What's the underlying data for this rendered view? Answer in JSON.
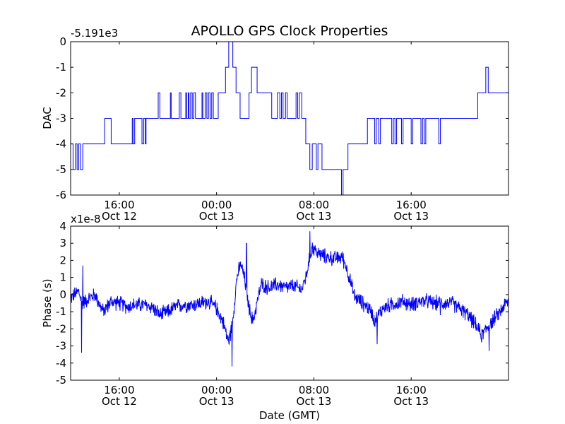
{
  "chart_data": [
    {
      "type": "line",
      "title": "APOLLO GPS Clock Properties",
      "xlabel": "",
      "ylabel": "DAC",
      "offset_label": "-5.191e3",
      "x_unit": "hours since 2008-10-12 10:00 GMT",
      "xlim": [
        0,
        54
      ],
      "ylim": [
        -6,
        0
      ],
      "y_ticks": [
        {
          "value": 0,
          "label": "0"
        },
        {
          "value": -1,
          "label": "-1"
        },
        {
          "value": -2,
          "label": "-2"
        },
        {
          "value": -3,
          "label": "-3"
        },
        {
          "value": -4,
          "label": "-4"
        },
        {
          "value": -5,
          "label": "-5"
        },
        {
          "value": -6,
          "label": "-6"
        }
      ],
      "x_ticks": [
        {
          "value": 6,
          "time": "16:00",
          "date": "Oct 12"
        },
        {
          "value": 18,
          "time": "00:00",
          "date": "Oct 13"
        },
        {
          "value": 30,
          "time": "08:00",
          "date": "Oct 13"
        },
        {
          "value": 42,
          "time": "16:00",
          "date": "Oct 13"
        }
      ],
      "color": "#0000ff",
      "series": [
        {
          "name": "DAC",
          "points": [
            [
              0.0,
              -4
            ],
            [
              0.3,
              -4
            ],
            [
              0.3,
              -5
            ],
            [
              0.6,
              -5
            ],
            [
              0.6,
              -4
            ],
            [
              0.8,
              -4
            ],
            [
              0.8,
              -5
            ],
            [
              1.0,
              -5
            ],
            [
              1.0,
              -4
            ],
            [
              1.2,
              -4
            ],
            [
              1.2,
              -5
            ],
            [
              1.5,
              -5
            ],
            [
              1.5,
              -4
            ],
            [
              4.2,
              -4
            ],
            [
              4.2,
              -3
            ],
            [
              5.0,
              -3
            ],
            [
              5.0,
              -4
            ],
            [
              7.6,
              -4
            ],
            [
              7.6,
              -3
            ],
            [
              7.7,
              -3
            ],
            [
              7.7,
              -4
            ],
            [
              7.9,
              -4
            ],
            [
              7.9,
              -3
            ],
            [
              8.8,
              -3
            ],
            [
              8.8,
              -4
            ],
            [
              9.0,
              -4
            ],
            [
              9.0,
              -3
            ],
            [
              9.2,
              -3
            ],
            [
              9.2,
              -4
            ],
            [
              9.3,
              -4
            ],
            [
              9.3,
              -3
            ],
            [
              10.8,
              -3
            ],
            [
              10.8,
              -2
            ],
            [
              11.0,
              -2
            ],
            [
              11.0,
              -3
            ],
            [
              12.3,
              -3
            ],
            [
              12.3,
              -2
            ],
            [
              12.4,
              -2
            ],
            [
              12.4,
              -3
            ],
            [
              13.4,
              -3
            ],
            [
              13.4,
              -2
            ],
            [
              13.6,
              -2
            ],
            [
              13.6,
              -3
            ],
            [
              14.2,
              -3
            ],
            [
              14.2,
              -2
            ],
            [
              14.3,
              -2
            ],
            [
              14.3,
              -3
            ],
            [
              14.5,
              -3
            ],
            [
              14.5,
              -2
            ],
            [
              14.6,
              -2
            ],
            [
              14.6,
              -3
            ],
            [
              14.8,
              -3
            ],
            [
              14.8,
              -2
            ],
            [
              15.0,
              -2
            ],
            [
              15.0,
              -3
            ],
            [
              15.2,
              -3
            ],
            [
              15.2,
              -2
            ],
            [
              15.4,
              -2
            ],
            [
              15.4,
              -3
            ],
            [
              16.2,
              -3
            ],
            [
              16.2,
              -2
            ],
            [
              16.3,
              -2
            ],
            [
              16.3,
              -3
            ],
            [
              16.6,
              -3
            ],
            [
              16.6,
              -2
            ],
            [
              16.8,
              -2
            ],
            [
              16.8,
              -3
            ],
            [
              17.0,
              -3
            ],
            [
              17.0,
              -2
            ],
            [
              17.2,
              -2
            ],
            [
              17.2,
              -3
            ],
            [
              17.4,
              -3
            ],
            [
              17.4,
              -2
            ],
            [
              17.6,
              -2
            ],
            [
              17.6,
              -3
            ],
            [
              18.2,
              -3
            ],
            [
              18.2,
              -2
            ],
            [
              19.1,
              -2
            ],
            [
              19.1,
              -1
            ],
            [
              19.5,
              -1
            ],
            [
              19.5,
              0
            ],
            [
              20.0,
              0
            ],
            [
              20.0,
              -1
            ],
            [
              20.4,
              -1
            ],
            [
              20.4,
              -2
            ],
            [
              20.9,
              -2
            ],
            [
              20.9,
              -3
            ],
            [
              22.0,
              -3
            ],
            [
              22.0,
              -2
            ],
            [
              22.3,
              -2
            ],
            [
              22.3,
              -1
            ],
            [
              23.0,
              -1
            ],
            [
              23.0,
              -2
            ],
            [
              24.8,
              -2
            ],
            [
              24.8,
              -3
            ],
            [
              25.5,
              -3
            ],
            [
              25.5,
              -2
            ],
            [
              25.8,
              -2
            ],
            [
              25.8,
              -3
            ],
            [
              26.0,
              -3
            ],
            [
              26.0,
              -2
            ],
            [
              26.2,
              -2
            ],
            [
              26.2,
              -3
            ],
            [
              26.5,
              -3
            ],
            [
              26.5,
              -2
            ],
            [
              26.7,
              -2
            ],
            [
              26.7,
              -3
            ],
            [
              27.8,
              -3
            ],
            [
              27.8,
              -2
            ],
            [
              28.0,
              -2
            ],
            [
              28.0,
              -3
            ],
            [
              28.2,
              -3
            ],
            [
              28.2,
              -2
            ],
            [
              28.5,
              -2
            ],
            [
              28.5,
              -3
            ],
            [
              29.0,
              -3
            ],
            [
              29.0,
              -4
            ],
            [
              29.5,
              -4
            ],
            [
              29.5,
              -5
            ],
            [
              29.8,
              -5
            ],
            [
              29.8,
              -4
            ],
            [
              30.3,
              -4
            ],
            [
              30.3,
              -5
            ],
            [
              30.5,
              -5
            ],
            [
              30.5,
              -4
            ],
            [
              31.0,
              -4
            ],
            [
              31.0,
              -5
            ],
            [
              33.4,
              -5
            ],
            [
              33.4,
              -6
            ],
            [
              33.6,
              -6
            ],
            [
              33.6,
              -5
            ],
            [
              34.2,
              -5
            ],
            [
              34.2,
              -4
            ],
            [
              36.6,
              -4
            ],
            [
              36.6,
              -3
            ],
            [
              37.5,
              -3
            ],
            [
              37.5,
              -4
            ],
            [
              37.7,
              -4
            ],
            [
              37.7,
              -3
            ],
            [
              38.0,
              -3
            ],
            [
              38.0,
              -4
            ],
            [
              38.2,
              -4
            ],
            [
              38.2,
              -3
            ],
            [
              39.6,
              -3
            ],
            [
              39.6,
              -4
            ],
            [
              39.8,
              -4
            ],
            [
              39.8,
              -3
            ],
            [
              40.0,
              -3
            ],
            [
              40.0,
              -4
            ],
            [
              40.2,
              -4
            ],
            [
              40.2,
              -3
            ],
            [
              40.8,
              -3
            ],
            [
              40.8,
              -4
            ],
            [
              41.0,
              -4
            ],
            [
              41.0,
              -3
            ],
            [
              42.0,
              -3
            ],
            [
              42.0,
              -4
            ],
            [
              42.2,
              -4
            ],
            [
              42.2,
              -3
            ],
            [
              43.2,
              -3
            ],
            [
              43.2,
              -4
            ],
            [
              43.4,
              -4
            ],
            [
              43.4,
              -3
            ],
            [
              43.6,
              -3
            ],
            [
              43.6,
              -4
            ],
            [
              43.8,
              -4
            ],
            [
              43.8,
              -3
            ],
            [
              45.4,
              -3
            ],
            [
              45.4,
              -4
            ],
            [
              45.6,
              -4
            ],
            [
              45.6,
              -3
            ],
            [
              50.2,
              -3
            ],
            [
              50.2,
              -2
            ],
            [
              51.2,
              -2
            ],
            [
              51.2,
              -1
            ],
            [
              51.5,
              -1
            ],
            [
              51.5,
              -2
            ],
            [
              54.0,
              -2
            ]
          ]
        }
      ]
    },
    {
      "type": "line",
      "title": "",
      "xlabel": "Date (GMT)",
      "ylabel": "Phase (s)",
      "offset_label": "x1e-8",
      "x_unit": "hours since 2008-10-12 10:00 GMT",
      "xlim": [
        0,
        54
      ],
      "ylim": [
        -5,
        4
      ],
      "y_ticks": [
        {
          "value": 4,
          "label": "4"
        },
        {
          "value": 3,
          "label": "3"
        },
        {
          "value": 2,
          "label": "2"
        },
        {
          "value": 1,
          "label": "1"
        },
        {
          "value": 0,
          "label": "0"
        },
        {
          "value": -1,
          "label": "-1"
        },
        {
          "value": -2,
          "label": "-2"
        },
        {
          "value": -3,
          "label": "-3"
        },
        {
          "value": -4,
          "label": "-4"
        },
        {
          "value": -5,
          "label": "-5"
        }
      ],
      "x_ticks": [
        {
          "value": 6,
          "time": "16:00",
          "date": "Oct 12"
        },
        {
          "value": 18,
          "time": "00:00",
          "date": "Oct 13"
        },
        {
          "value": 30,
          "time": "08:00",
          "date": "Oct 13"
        },
        {
          "value": 42,
          "time": "16:00",
          "date": "Oct 13"
        }
      ],
      "color": "#0000ff",
      "series": [
        {
          "name": "Phase",
          "trend": [
            [
              0.0,
              -0.2
            ],
            [
              1.0,
              0.2
            ],
            [
              1.4,
              -0.5
            ],
            [
              2.0,
              -0.3
            ],
            [
              3.0,
              0.0
            ],
            [
              4.0,
              -1.0
            ],
            [
              5.0,
              -0.4
            ],
            [
              6.0,
              -0.5
            ],
            [
              7.0,
              -0.7
            ],
            [
              8.0,
              -0.6
            ],
            [
              9.0,
              -0.6
            ],
            [
              10.0,
              -0.7
            ],
            [
              11.0,
              -1.2
            ],
            [
              12.0,
              -1.0
            ],
            [
              13.0,
              -0.7
            ],
            [
              14.0,
              -0.6
            ],
            [
              15.0,
              -0.6
            ],
            [
              16.0,
              -0.5
            ],
            [
              17.0,
              -0.4
            ],
            [
              18.0,
              -0.8
            ],
            [
              18.8,
              -1.6
            ],
            [
              19.5,
              -2.8
            ],
            [
              20.0,
              -1.5
            ],
            [
              20.5,
              1.0
            ],
            [
              21.0,
              1.8
            ],
            [
              21.5,
              0.8
            ],
            [
              22.0,
              -0.8
            ],
            [
              22.5,
              -1.6
            ],
            [
              23.0,
              -0.4
            ],
            [
              23.5,
              0.6
            ],
            [
              24.5,
              0.4
            ],
            [
              25.5,
              0.6
            ],
            [
              26.5,
              0.4
            ],
            [
              27.5,
              0.5
            ],
            [
              28.5,
              0.3
            ],
            [
              29.0,
              1.0
            ],
            [
              29.8,
              2.8
            ],
            [
              30.5,
              2.4
            ],
            [
              31.5,
              2.2
            ],
            [
              32.5,
              2.1
            ],
            [
              33.5,
              2.2
            ],
            [
              34.0,
              1.6
            ],
            [
              35.0,
              -0.1
            ],
            [
              36.0,
              -0.5
            ],
            [
              37.0,
              -0.9
            ],
            [
              37.5,
              -1.5
            ],
            [
              38.5,
              -0.8
            ],
            [
              39.5,
              -0.6
            ],
            [
              41.0,
              -0.4
            ],
            [
              42.0,
              -0.6
            ],
            [
              43.0,
              -0.4
            ],
            [
              44.0,
              -0.4
            ],
            [
              45.0,
              -0.5
            ],
            [
              46.0,
              -0.5
            ],
            [
              47.0,
              -0.5
            ],
            [
              48.0,
              -0.8
            ],
            [
              49.0,
              -1.2
            ],
            [
              50.0,
              -1.8
            ],
            [
              50.7,
              -2.4
            ],
            [
              51.5,
              -1.8
            ],
            [
              52.5,
              -1.3
            ],
            [
              53.5,
              -0.6
            ],
            [
              54.0,
              -0.4
            ]
          ],
          "noise_amplitude": 0.45,
          "spikes": [
            [
              1.35,
              -3.4
            ],
            [
              1.5,
              1.7
            ],
            [
              19.9,
              -4.2
            ],
            [
              21.7,
              3.0
            ],
            [
              29.5,
              3.7
            ],
            [
              37.8,
              -2.9
            ],
            [
              45.6,
              -1.2
            ],
            [
              51.6,
              -3.3
            ]
          ]
        }
      ]
    }
  ]
}
